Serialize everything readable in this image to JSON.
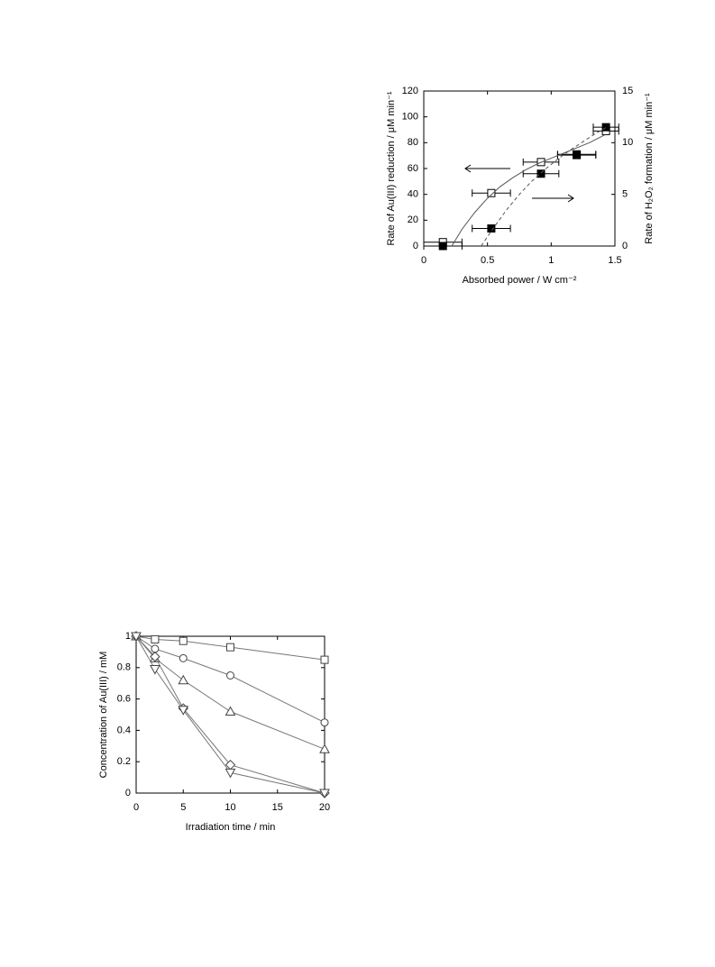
{
  "chart_data": [
    {
      "type": "scatter",
      "xlabel": "Absorbed power / W cm⁻²",
      "ylabel": "Rate of Au(III) reduction / μM min⁻¹",
      "y2label": "Rate of H₂O₂ formation / μM min⁻¹",
      "xlim": [
        0,
        1.5
      ],
      "xticks": [
        0,
        0.5,
        1,
        1.5
      ],
      "ylim": [
        0,
        120
      ],
      "yticks": [
        0,
        20,
        40,
        60,
        80,
        100,
        120
      ],
      "y2lim": [
        0,
        15
      ],
      "y2ticks": [
        0,
        5,
        10,
        15
      ],
      "series": [
        {
          "marker": "square",
          "color": "#ffffff",
          "x": [
            0.15,
            0.53,
            0.92,
            1.2,
            1.43
          ],
          "xerr": [
            0.15,
            0.15,
            0.14,
            0.15,
            0.1
          ],
          "values": [
            3,
            41,
            65,
            71,
            89
          ]
        },
        {
          "marker": "square",
          "color": "#000000",
          "axis": "y2",
          "x": [
            0.15,
            0.53,
            0.92,
            1.2,
            1.43
          ],
          "xerr": [
            0.15,
            0.15,
            0.14,
            0.15,
            0.1
          ],
          "values": [
            0,
            1.7,
            7,
            8.8,
            11.5
          ]
        },
        {
          "marker": "none",
          "line_style": "solid",
          "color": "#555555",
          "x": [
            0.22,
            0.3,
            0.4,
            0.5,
            0.6,
            0.7,
            0.8,
            0.9,
            1.0,
            1.1,
            1.2,
            1.3,
            1.42
          ],
          "values": [
            0,
            13,
            26,
            37,
            46,
            53,
            59,
            64,
            68,
            72,
            76,
            80,
            86
          ]
        },
        {
          "marker": "none",
          "line_style": "dashed",
          "color": "#555555",
          "axis": "y2",
          "x": [
            0.45,
            0.55,
            0.65,
            0.75,
            0.85,
            0.95,
            1.05,
            1.15,
            1.25,
            1.35,
            1.45
          ],
          "values": [
            0,
            1.8,
            3.5,
            5,
            6.3,
            7.4,
            8.4,
            9.3,
            10.1,
            10.9,
            11.6
          ]
        }
      ]
    },
    {
      "type": "line",
      "xlabel": "Irradiation time / min",
      "ylabel": "Concentration of Au(III) / mM",
      "xlim": [
        0,
        20
      ],
      "xticks": [
        0,
        5,
        10,
        15,
        20
      ],
      "ylim": [
        0,
        1
      ],
      "yticks": [
        0,
        0.2,
        0.4,
        0.6,
        0.8,
        1
      ],
      "x": [
        0,
        2,
        5,
        10,
        20
      ],
      "series": [
        {
          "marker": "square",
          "color": "#777777",
          "values": [
            1,
            0.98,
            0.97,
            0.93,
            0.85
          ]
        },
        {
          "marker": "circle",
          "color": "#777777",
          "values": [
            1,
            0.92,
            0.86,
            0.75,
            0.45
          ]
        },
        {
          "marker": "triangle",
          "color": "#777777",
          "values": [
            1,
            0.86,
            0.72,
            0.52,
            0.28
          ]
        },
        {
          "marker": "diamond",
          "color": "#777777",
          "values": [
            1,
            0.87,
            0.54,
            0.18,
            0
          ]
        },
        {
          "marker": "triangle-down",
          "color": "#777777",
          "values": [
            1,
            0.79,
            0.53,
            0.13,
            0
          ]
        }
      ]
    }
  ]
}
